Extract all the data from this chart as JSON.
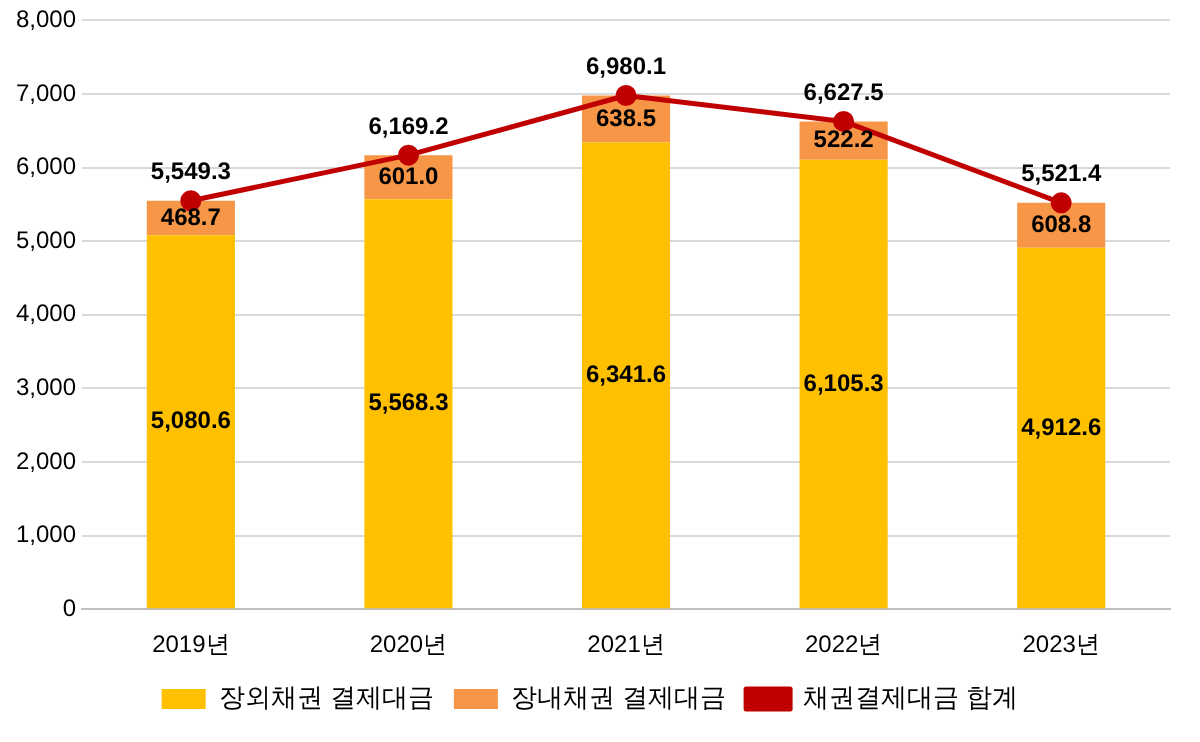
{
  "chart_data": {
    "type": "bar",
    "stacked": true,
    "categories": [
      "2019년",
      "2020년",
      "2021년",
      "2022년",
      "2023년"
    ],
    "series": [
      {
        "name": "장외채권 결제대금",
        "color": "#ffc000",
        "values": [
          5080.6,
          5568.3,
          6341.6,
          6105.3,
          4912.6
        ],
        "value_labels": [
          "5,080.6",
          "5,568.3",
          "6,341.6",
          "6,105.3",
          "4,912.6"
        ]
      },
      {
        "name": "장내채권 결제대금",
        "color": "#f79646",
        "values": [
          468.7,
          601.0,
          638.5,
          522.2,
          608.8
        ],
        "value_labels": [
          "468.7",
          "601.0",
          "638.5",
          "522.2",
          "608.8"
        ]
      },
      {
        "name": "채권결제대금 합계",
        "type": "line",
        "color": "#c00000",
        "values": [
          5549.3,
          6169.2,
          6980.1,
          6627.5,
          5521.4
        ],
        "value_labels": [
          "5,549.3",
          "6,169.2",
          "6,980.1",
          "6,627.5",
          "5,521.4"
        ]
      }
    ],
    "ylim": [
      0,
      8000
    ],
    "yticks": [
      {
        "value": 0,
        "label": "0"
      },
      {
        "value": 1000,
        "label": "1,000"
      },
      {
        "value": 2000,
        "label": "2,000"
      },
      {
        "value": 3000,
        "label": "3,000"
      },
      {
        "value": 4000,
        "label": "4,000"
      },
      {
        "value": 5000,
        "label": "5,000"
      },
      {
        "value": 6000,
        "label": "6,000"
      },
      {
        "value": 7000,
        "label": "7,000"
      },
      {
        "value": 8000,
        "label": "8,000"
      }
    ],
    "grid": "y",
    "legend": "bottom",
    "marker": "circle",
    "line_style": "solid"
  }
}
